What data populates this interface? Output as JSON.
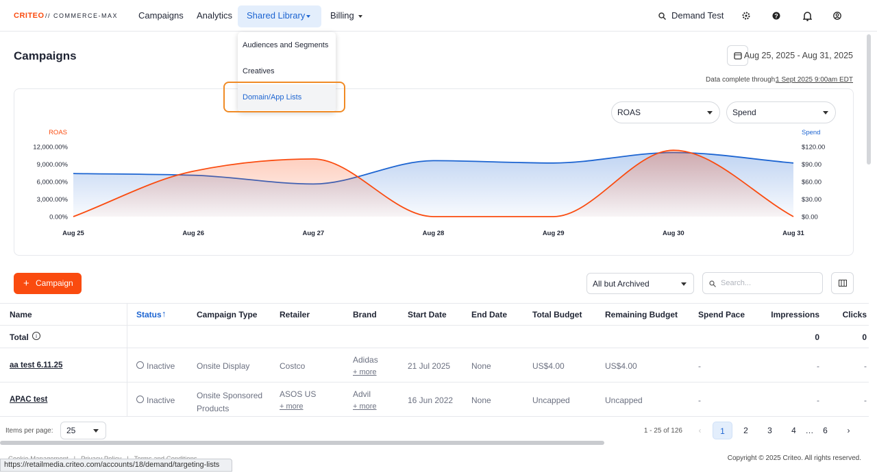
{
  "header": {
    "logo": "CRITEO",
    "product": "// COMMERCE-MAX",
    "nav": [
      "Campaigns",
      "Analytics",
      "Shared Library",
      "Billing"
    ],
    "account": "Demand Test"
  },
  "menu": {
    "items": [
      "Audiences and Segments",
      "Creatives",
      "Domain/App Lists"
    ]
  },
  "page": {
    "title": "Campaigns",
    "date_range": "Aug 25, 2025 - Aug 31, 2025",
    "data_complete_label": "Data complete through:",
    "data_complete_value": "1 Sept 2025 9:00am EDT"
  },
  "chart_data": {
    "type": "line",
    "metric_selects": [
      "ROAS",
      "Spend"
    ],
    "x": [
      "Aug 25",
      "Aug 26",
      "Aug 27",
      "Aug 28",
      "Aug 29",
      "Aug 30",
      "Aug 31"
    ],
    "series": [
      {
        "name": "ROAS",
        "color": "#fa4b0f",
        "values": [
          0,
          7800,
          9900,
          0,
          0,
          11400,
          0
        ]
      },
      {
        "name": "Spend",
        "color": "#1c64d1",
        "axis": "y2",
        "values": [
          74,
          71,
          56,
          96,
          92,
          110,
          92
        ]
      }
    ],
    "ylim": [
      0,
      12000
    ],
    "yticks": [
      {
        "value": 0,
        "label": "0.00%"
      },
      {
        "value": 3000,
        "label": "3,000.00%"
      },
      {
        "value": 6000,
        "label": "6,000.00%"
      },
      {
        "value": 9000,
        "label": "9,000.00%"
      },
      {
        "value": 12000,
        "label": "12,000.00%"
      }
    ],
    "y2lim": [
      0,
      120
    ],
    "y2ticks": [
      {
        "value": 0,
        "label": "$0.00"
      },
      {
        "value": 30,
        "label": "$30.00"
      },
      {
        "value": 60,
        "label": "$60.00"
      },
      {
        "value": 90,
        "label": "$90.00"
      },
      {
        "value": 120,
        "label": "$120.00"
      }
    ]
  },
  "toolbar": {
    "add_button": "Campaign",
    "filter": "All but Archived",
    "search_placeholder": "Search..."
  },
  "table": {
    "columns": [
      "Name",
      "Status",
      "Campaign Type",
      "Retailer",
      "Brand",
      "Start Date",
      "End Date",
      "Total Budget",
      "Remaining Budget",
      "Spend Pace",
      "Impressions",
      "Clicks"
    ],
    "total": {
      "label": "Total",
      "impressions": "0",
      "clicks": "0"
    },
    "rows": [
      {
        "name": "aa test 6.11.25",
        "status": "Inactive",
        "campaign_type": "Onsite Display",
        "retailer": "Costco",
        "brand": "Adidas",
        "brand_more": "+ more",
        "start_date": "21 Jul 2025",
        "end_date": "None",
        "total_budget": "US$4.00",
        "remaining_budget": "US$4.00",
        "spend_pace": "-",
        "impressions": "-",
        "clicks": "-"
      },
      {
        "name": "APAC test",
        "status": "Inactive",
        "campaign_type": "Onsite Sponsored Products",
        "retailer": "ASOS US",
        "retailer_more": "+ more",
        "brand": "Advil",
        "brand_more": "+ more",
        "start_date": "16 Jun 2022",
        "end_date": "None",
        "total_budget": "Uncapped",
        "remaining_budget": "Uncapped",
        "spend_pace": "-",
        "impressions": "-",
        "clicks": "-"
      }
    ]
  },
  "pagination": {
    "items_per_page_label": "Items per page:",
    "items_per_page": "25",
    "range": "1 - 25 of 126",
    "pages": [
      "1",
      "2",
      "3",
      "4",
      "…",
      "6"
    ]
  },
  "footer": {
    "links": [
      "Cookie Management",
      "Privacy Policy",
      "Terms and Conditions"
    ],
    "copyright": "Copyright © 2025 Criteo. All rights reserved."
  },
  "status_bar": "https://retailmedia.criteo.com/accounts/18/demand/targeting-lists"
}
